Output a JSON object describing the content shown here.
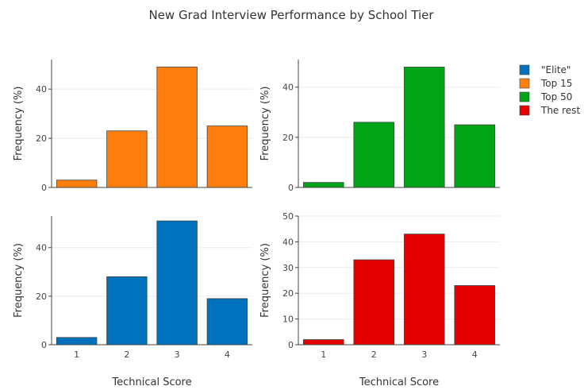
{
  "chart_data": {
    "type": "bar",
    "title": "New Grad Interview Performance by School Tier",
    "xlabel": "Technical Score",
    "ylabel": "Frequency (%)",
    "categories": [
      "1",
      "2",
      "3",
      "4"
    ],
    "legend_position": "top-right",
    "grid": true,
    "series": [
      {
        "name": "\"Elite\"",
        "color": "#0072bd",
        "values": [
          3,
          28,
          51,
          19
        ],
        "ylim": [
          0,
          53
        ],
        "yticks": [
          0,
          20,
          40
        ],
        "panel": "bottom-left"
      },
      {
        "name": "Top 15",
        "color": "#ff7f0e",
        "values": [
          3,
          23,
          49,
          25
        ],
        "ylim": [
          0,
          52
        ],
        "yticks": [
          0,
          20,
          40
        ],
        "panel": "top-left"
      },
      {
        "name": "Top 50",
        "color": "#00a416",
        "values": [
          2,
          26,
          48,
          25
        ],
        "ylim": [
          0,
          51
        ],
        "yticks": [
          0,
          20,
          40
        ],
        "panel": "top-right"
      },
      {
        "name": "The rest",
        "color": "#e30000",
        "values": [
          2,
          33,
          43,
          23
        ],
        "ylim": [
          0,
          50
        ],
        "yticks": [
          0,
          10,
          20,
          30,
          40,
          50
        ],
        "panel": "bottom-right"
      }
    ]
  }
}
